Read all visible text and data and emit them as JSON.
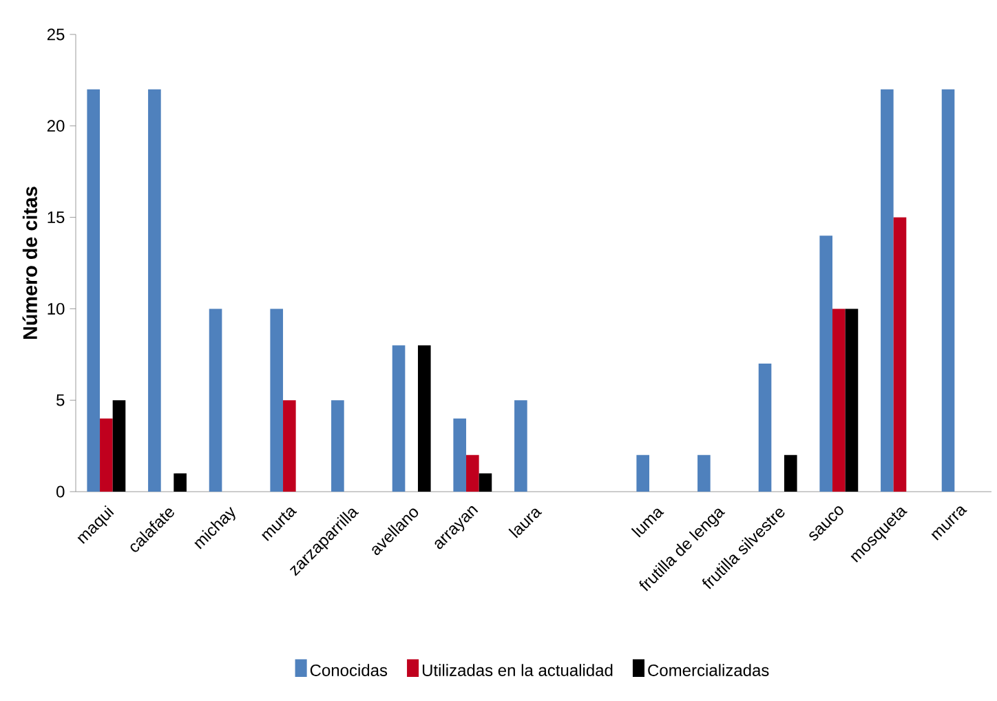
{
  "chart_data": {
    "type": "bar",
    "ylabel": "Número de citas",
    "categories": [
      "maqui",
      "calafate",
      "michay",
      "murta",
      "zarzaparrilla",
      "avellano",
      "arrayan",
      "laura",
      null,
      "luma",
      "frutilla de lenga",
      "frutilla silvestre",
      "sauco",
      "mosqueta",
      "murra"
    ],
    "series": [
      {
        "name": "Conocidas",
        "color": "#4f81bd",
        "values": [
          22,
          22,
          10,
          10,
          5,
          8,
          4,
          5,
          null,
          2,
          2,
          7,
          14,
          22,
          22
        ]
      },
      {
        "name": "Utilizadas en la actualidad",
        "color": "#c0001e",
        "values": [
          4,
          0,
          0,
          5,
          0,
          0,
          2,
          0,
          null,
          0,
          0,
          0,
          10,
          15,
          0
        ]
      },
      {
        "name": "Comercializadas",
        "color": "#000000",
        "values": [
          5,
          1,
          0,
          0,
          0,
          8,
          1,
          0,
          null,
          0,
          0,
          2,
          10,
          0,
          0
        ]
      }
    ],
    "ylim": [
      0,
      25
    ],
    "yticks": [
      0,
      5,
      10,
      15,
      20,
      25
    ],
    "grid": false,
    "legend": "bottom"
  }
}
